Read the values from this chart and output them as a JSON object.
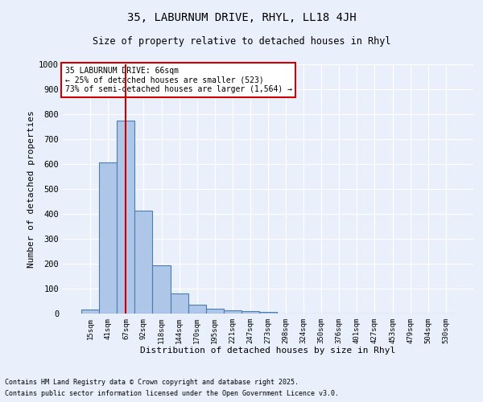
{
  "title1": "35, LABURNUM DRIVE, RHYL, LL18 4JH",
  "title2": "Size of property relative to detached houses in Rhyl",
  "xlabel": "Distribution of detached houses by size in Rhyl",
  "ylabel": "Number of detached properties",
  "bar_labels": [
    "15sqm",
    "41sqm",
    "67sqm",
    "92sqm",
    "118sqm",
    "144sqm",
    "170sqm",
    "195sqm",
    "221sqm",
    "247sqm",
    "273sqm",
    "298sqm",
    "324sqm",
    "350sqm",
    "376sqm",
    "401sqm",
    "427sqm",
    "453sqm",
    "479sqm",
    "504sqm",
    "530sqm"
  ],
  "bar_values": [
    15,
    608,
    775,
    412,
    192,
    80,
    37,
    20,
    14,
    10,
    7,
    0,
    0,
    0,
    0,
    0,
    0,
    0,
    0,
    0,
    0
  ],
  "bar_color": "#aec6e8",
  "bar_edge_color": "#4c7daf",
  "bg_color": "#eaf0fb",
  "grid_color": "#ffffff",
  "ylim": [
    0,
    1000
  ],
  "yticks": [
    0,
    100,
    200,
    300,
    400,
    500,
    600,
    700,
    800,
    900,
    1000
  ],
  "red_line_x": 2,
  "annotation_title": "35 LABURNUM DRIVE: 66sqm",
  "annotation_line1": "← 25% of detached houses are smaller (523)",
  "annotation_line2": "73% of semi-detached houses are larger (1,564) →",
  "annotation_box_color": "#ffffff",
  "annotation_box_edge": "#cc0000",
  "footnote1": "Contains HM Land Registry data © Crown copyright and database right 2025.",
  "footnote2": "Contains public sector information licensed under the Open Government Licence v3.0."
}
